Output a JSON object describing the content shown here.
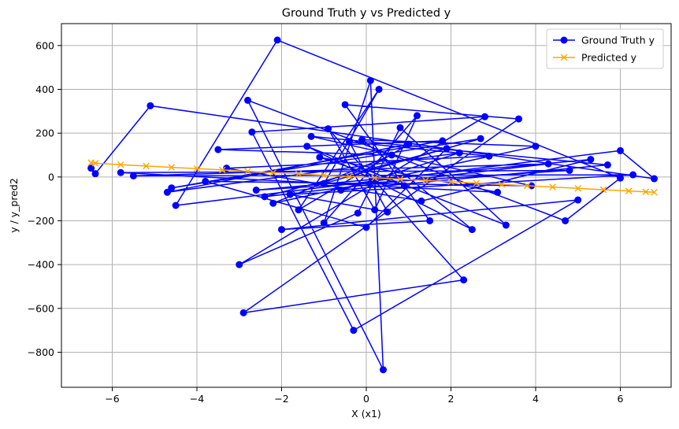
{
  "chart_data": {
    "type": "line",
    "title": "Ground Truth y vs Predicted y",
    "xlabel": "X (x1)",
    "ylabel": "y / y_pred2",
    "xlim": [
      -7.2,
      7.2
    ],
    "ylim": [
      -960,
      700
    ],
    "xticks": [
      -6,
      -4,
      -2,
      0,
      2,
      4,
      6
    ],
    "yticks": [
      -800,
      -600,
      -400,
      -200,
      0,
      200,
      400,
      600
    ],
    "xtick_labels": [
      "−6",
      "−4",
      "−2",
      "0",
      "2",
      "4",
      "6"
    ],
    "ytick_labels": [
      "−800",
      "−600",
      "−400",
      "−200",
      "0",
      "200",
      "400",
      "600"
    ],
    "grid": true,
    "legend_position": "top-right",
    "series": [
      {
        "name": "Ground Truth y",
        "color": "#0000ff",
        "marker": "circle",
        "x": [
          -6.5,
          -6.4,
          -5.1,
          6.8,
          6.0,
          -4.5,
          -2.1,
          6.0,
          4.7,
          -2.8,
          0.4,
          0.1,
          -1.0,
          1.2,
          0.2,
          -0.9,
          2.3,
          -2.9,
          3.6,
          -0.5,
          1.5,
          -2.0,
          5.0,
          -0.3,
          -2.7,
          2.8,
          -3.0,
          -0.2,
          0.8,
          3.3,
          -1.4,
          2.5,
          -0.1,
          4.0,
          -2.2,
          0.6,
          -3.5,
          1.8,
          -4.6,
          2.7,
          -1.0,
          0.3,
          -1.6,
          1.0,
          -4.7,
          2.2,
          -0.6,
          5.7,
          -1.3,
          3.9,
          -3.8,
          0.0,
          1.9,
          -2.4,
          4.3,
          -5.5,
          6.3,
          -1.8,
          0.5,
          -0.4,
          2.9,
          -3.3,
          1.3,
          5.3,
          -2.6,
          4.8,
          -5.8,
          3.1,
          -1.1,
          0.9
        ],
        "y": [
          40,
          15,
          325,
          -8,
          120,
          -130,
          625,
          -5,
          -200,
          350,
          -880,
          440,
          -210,
          280,
          -150,
          220,
          -470,
          -620,
          265,
          330,
          -200,
          -240,
          -105,
          -700,
          205,
          275,
          -400,
          -165,
          225,
          -220,
          140,
          -240,
          170,
          140,
          -120,
          100,
          125,
          165,
          -50,
          175,
          -30,
          400,
          -150,
          150,
          -70,
          110,
          -60,
          55,
          185,
          -40,
          -20,
          -230,
          130,
          -90,
          60,
          5,
          10,
          -80,
          -160,
          160,
          95,
          40,
          -110,
          80,
          -60,
          30,
          20,
          -70,
          90,
          -40
        ]
      },
      {
        "name": "Predicted y",
        "color": "#ffa500",
        "marker": "x",
        "x": [
          -6.5,
          -6.4,
          -5.8,
          -5.2,
          -4.6,
          -4.0,
          -3.4,
          -2.8,
          -2.2,
          -1.6,
          -1.0,
          -0.4,
          0.2,
          0.8,
          1.4,
          2.0,
          2.6,
          3.2,
          3.8,
          4.4,
          5.0,
          5.6,
          6.2,
          6.6,
          6.8
        ],
        "y": [
          65,
          63,
          56,
          50,
          44,
          38,
          32,
          26,
          20,
          14,
          8,
          2,
          -4,
          -10,
          -16,
          -22,
          -28,
          -34,
          -40,
          -46,
          -52,
          -58,
          -64,
          -68,
          -70
        ]
      }
    ]
  }
}
